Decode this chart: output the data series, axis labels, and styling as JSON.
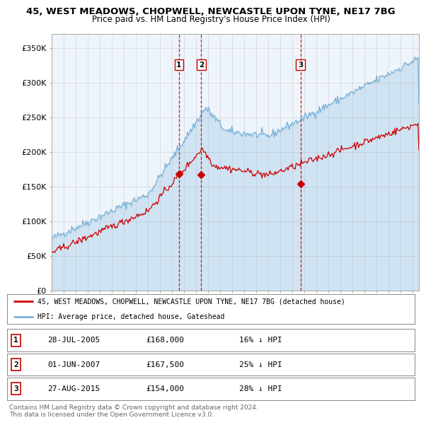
{
  "title1": "45, WEST MEADOWS, CHOPWELL, NEWCASTLE UPON TYNE, NE17 7BG",
  "title2": "Price paid vs. HM Land Registry's House Price Index (HPI)",
  "ylabel_ticks": [
    "£0",
    "£50K",
    "£100K",
    "£150K",
    "£200K",
    "£250K",
    "£300K",
    "£350K"
  ],
  "ytick_values": [
    0,
    50000,
    100000,
    150000,
    200000,
    250000,
    300000,
    350000
  ],
  "ylim": [
    0,
    370000
  ],
  "xlim_start": 1995.0,
  "xlim_end": 2025.5,
  "sale_dates": [
    2005.57,
    2007.42,
    2015.66
  ],
  "sale_prices": [
    168000,
    167500,
    154000
  ],
  "sale_labels": [
    "1",
    "2",
    "3"
  ],
  "hpi_color": "#7ab3d8",
  "hpi_fill_color": "#daeaf5",
  "price_color": "#cc0000",
  "dashed_color": "#cc0000",
  "legend1": "45, WEST MEADOWS, CHOPWELL, NEWCASTLE UPON TYNE, NE17 7BG (detached house)",
  "legend2": "HPI: Average price, detached house, Gateshead",
  "table_rows": [
    [
      "1",
      "28-JUL-2005",
      "£168,000",
      "16% ↓ HPI"
    ],
    [
      "2",
      "01-JUN-2007",
      "£167,500",
      "25% ↓ HPI"
    ],
    [
      "3",
      "27-AUG-2015",
      "£154,000",
      "28% ↓ HPI"
    ]
  ],
  "footnote": "Contains HM Land Registry data © Crown copyright and database right 2024.\nThis data is licensed under the Open Government Licence v3.0.",
  "bg_color": "#ffffff",
  "plot_bg_color": "#eef4fb",
  "grid_color": "#aaaaaa"
}
